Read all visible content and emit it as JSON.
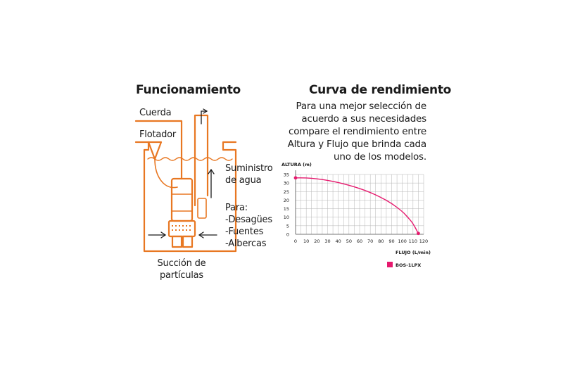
{
  "left_section": {
    "title": "Funcionamiento",
    "labels": {
      "cuerda": "Cuerda",
      "flotador": "Flotador",
      "suministro": [
        "Suministro",
        "de agua"
      ],
      "para": [
        "Para:",
        "-Desagües",
        "-Fuentes",
        "-Albercas"
      ],
      "succion": [
        "Succión de",
        "partículas"
      ]
    }
  },
  "right_section": {
    "title": "Curva de rendimiento",
    "description": [
      "Para una mejor selección de",
      "acuerdo a sus necesidades",
      "compare el rendimiento entre",
      "Altura y Flujo que brinda cada",
      "uno de los modelos."
    ]
  },
  "colors": {
    "orange": "#e87722",
    "pink": "#e6196e",
    "grid": "#b5b5b5"
  },
  "chart_data": {
    "type": "line",
    "ylabel": "ALTURA (m)",
    "xlabel": "FLUJO (L/min)",
    "xlim": [
      0,
      120
    ],
    "ylim": [
      0,
      35
    ],
    "x_ticks": [
      0,
      10,
      20,
      30,
      40,
      50,
      60,
      70,
      80,
      90,
      100,
      110,
      120
    ],
    "y_ticks": [
      0,
      5,
      10,
      15,
      20,
      25,
      30,
      35
    ],
    "grid": true,
    "legend_position": "bottom-right",
    "series": [
      {
        "name": "BOS-1LPX",
        "x": [
          0,
          10,
          20,
          30,
          40,
          50,
          60,
          70,
          80,
          90,
          100,
          105,
          110,
          115
        ],
        "y": [
          33,
          33,
          32.5,
          31.6,
          30.3,
          28.7,
          26.8,
          24.5,
          21.6,
          18.1,
          13.4,
          10.1,
          6.4,
          0.5
        ]
      }
    ]
  }
}
